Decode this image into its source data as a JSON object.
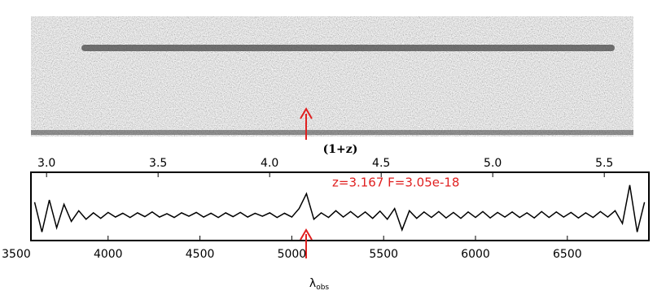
{
  "chart_data": {
    "type": "line",
    "x2label": "(1+z)",
    "x2lim": [
      2.93,
      5.7
    ],
    "x2ticks": [
      {
        "value": 3,
        "label": "3.0"
      },
      3.5,
      {
        "value": 4,
        "label": "4.0"
      },
      4.5,
      {
        "value": 5,
        "label": "5.0"
      },
      5.5
    ],
    "annotation": "z=3.167  F=3.05e-18",
    "xlabel": {
      "text": "λ",
      "sub": "obs"
    },
    "xlim": [
      3580,
      6944
    ],
    "xticks": [
      3500,
      4000,
      4500,
      5000,
      5500,
      6000,
      6500
    ],
    "ylim": [
      -0.6,
      1.0
    ],
    "x": [
      3600,
      3640,
      3680,
      3720,
      3760,
      3800,
      3840,
      3880,
      3920,
      3960,
      4000,
      4040,
      4080,
      4120,
      4160,
      4200,
      4240,
      4280,
      4320,
      4360,
      4400,
      4440,
      4480,
      4520,
      4560,
      4600,
      4640,
      4680,
      4720,
      4760,
      4800,
      4840,
      4880,
      4920,
      4960,
      5000,
      5040,
      5080,
      5120,
      5160,
      5200,
      5240,
      5280,
      5320,
      5360,
      5400,
      5440,
      5480,
      5520,
      5560,
      5600,
      5640,
      5680,
      5720,
      5760,
      5800,
      5840,
      5880,
      5920,
      5960,
      6000,
      6040,
      6080,
      6120,
      6160,
      6200,
      6240,
      6280,
      6320,
      6360,
      6400,
      6440,
      6480,
      6520,
      6560,
      6600,
      6640,
      6680,
      6720,
      6760,
      6800,
      6840,
      6880,
      6920
    ],
    "series": [
      {
        "color": "#000000",
        "values": [
          0.3,
          -0.4,
          0.35,
          -0.3,
          0.25,
          -0.15,
          0.1,
          -0.1,
          0.05,
          -0.08,
          0.06,
          -0.05,
          0.04,
          -0.06,
          0.05,
          -0.04,
          0.07,
          -0.05,
          0.03,
          -0.06,
          0.05,
          -0.03,
          0.06,
          -0.05,
          0.04,
          -0.06,
          0.05,
          -0.04,
          0.06,
          -0.05,
          0.04,
          -0.03,
          0.05,
          -0.06,
          0.04,
          -0.05,
          0.15,
          0.5,
          -0.1,
          0.05,
          -0.06,
          0.1,
          -0.05,
          0.08,
          -0.06,
          0.07,
          -0.08,
          0.09,
          -0.1,
          0.15,
          -0.35,
          0.1,
          -0.08,
          0.07,
          -0.06,
          0.08,
          -0.07,
          0.06,
          -0.08,
          0.07,
          -0.06,
          0.08,
          -0.07,
          0.06,
          -0.05,
          0.07,
          -0.06,
          0.05,
          -0.07,
          0.08,
          -0.06,
          0.07,
          -0.05,
          0.06,
          -0.07,
          0.05,
          -0.06,
          0.08,
          -0.05,
          0.1,
          -0.2,
          0.7,
          -0.4,
          0.3
        ]
      }
    ],
    "annotation_color": "#e02020"
  }
}
